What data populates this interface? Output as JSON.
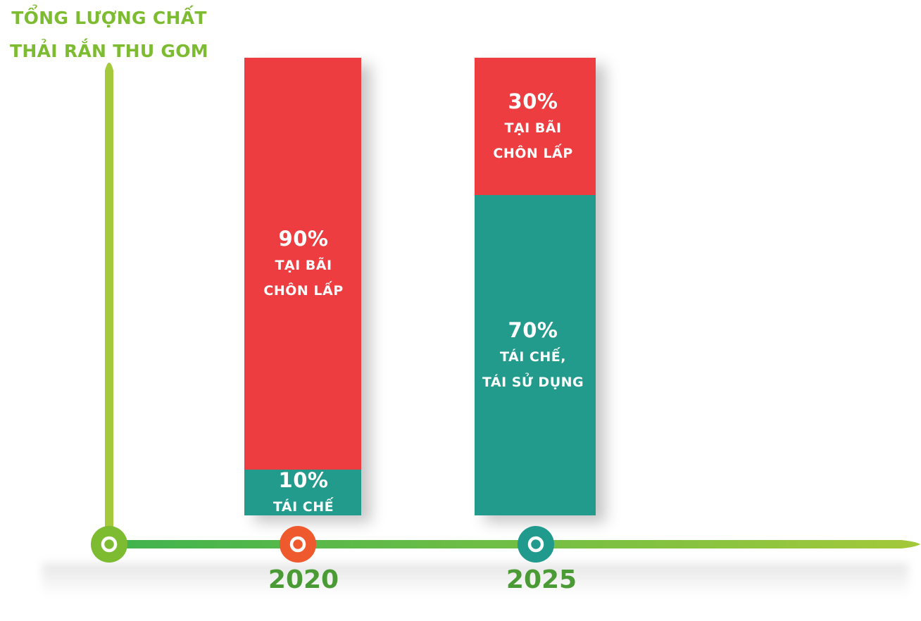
{
  "chart_data": {
    "type": "bar",
    "stacked": true,
    "title": [
      "TỔNG LƯỢNG CHẤT",
      "THẢI RẮN THU GOM"
    ],
    "categories": [
      "2020",
      "2025"
    ],
    "unit": "%",
    "ylim": [
      0,
      100
    ],
    "series": [
      {
        "key": "recycle",
        "color": "#219a8c",
        "values": [
          10,
          70
        ],
        "labels": [
          {
            "pct": "10%",
            "caption": [
              "TÁI CHẾ"
            ]
          },
          {
            "pct": "70%",
            "caption": [
              "TÁI CHẾ,",
              "TÁI SỬ DỤNG"
            ]
          }
        ]
      },
      {
        "key": "landfill",
        "color": "#ee3d41",
        "values": [
          90,
          30
        ],
        "labels": [
          {
            "pct": "90%",
            "caption": [
              "TẠI BÃI",
              "CHÔN LẤP"
            ]
          },
          {
            "pct": "30%",
            "caption": [
              "TẠI BÃI",
              "CHÔN LẤP"
            ]
          }
        ]
      }
    ],
    "markers": [
      {
        "category": "origin",
        "color": "#7dbb31"
      },
      {
        "category": "2020",
        "color": "#ee5a2e"
      },
      {
        "category": "2025",
        "color": "#1f9a8c"
      }
    ],
    "axis_colors": {
      "start": "#3fb34f",
      "end": "#a4c93a"
    }
  }
}
